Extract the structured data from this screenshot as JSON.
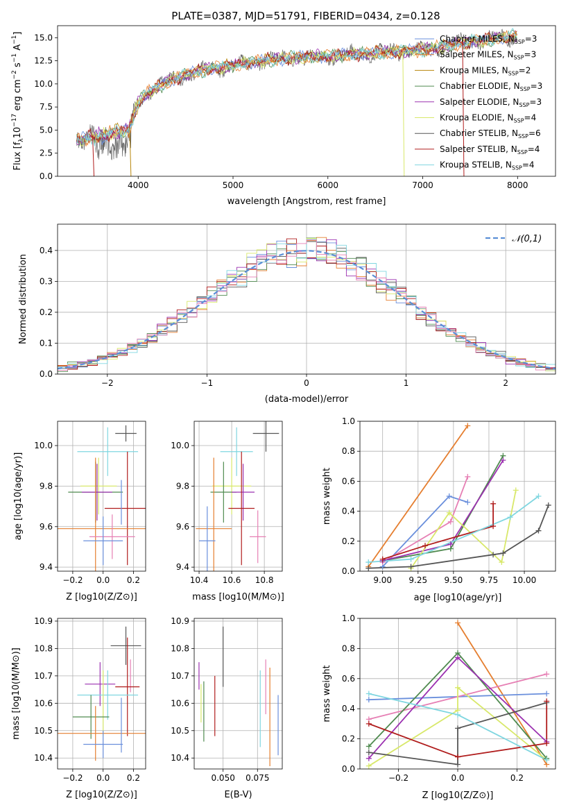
{
  "figure_title": "PLATE=0387, MJD=51791, FIBERID=0434, z=0.128",
  "colors": {
    "c0": "#6a8fdc",
    "c1": "#e57e2f",
    "c2": "#b8860b",
    "c3": "#4f8a4f",
    "c4": "#9b30b0",
    "c5": "#d8e86a",
    "c6": "#555555",
    "c7": "#b01c1c",
    "c8": "#7fd6e0",
    "c9": "#e67fb4",
    "grid": "#b0b0b0",
    "gauss": "#5b8fd6"
  },
  "chart_data": [
    {
      "id": "spectrum",
      "type": "line",
      "xlabel": "wavelength [Angstrom, rest frame]",
      "ylabel": "Flux [fλ10⁻¹⁷ erg cm⁻² s⁻¹ A⁻¹]",
      "xlim": [
        3150,
        8400
      ],
      "ylim": [
        0,
        16.3
      ],
      "xticks": [
        4000,
        5000,
        6000,
        7000,
        8000
      ],
      "yticks": [
        0.0,
        2.5,
        5.0,
        7.5,
        10.0,
        12.5,
        15.0
      ],
      "grid": false,
      "legend_position": "top-right",
      "continuum_x": [
        3350,
        3500,
        3700,
        3900,
        4000,
        4100,
        4300,
        4500,
        4700,
        5000,
        5300,
        5600,
        6000,
        6300,
        6600,
        7000,
        7300,
        7500,
        8000
      ],
      "continuum_y": [
        3.8,
        4.2,
        4.6,
        5.0,
        8.0,
        9.0,
        10.2,
        11.0,
        11.5,
        12.0,
        12.5,
        12.8,
        13.0,
        13.2,
        13.4,
        13.7,
        14.2,
        14.6,
        15.2
      ],
      "dropouts": [
        {
          "color": "c5",
          "x": 6790
        },
        {
          "color": "c7",
          "x": 7420
        },
        {
          "color": "c2",
          "x": 3910
        },
        {
          "color": "c7",
          "x": 3520
        }
      ],
      "series": [
        {
          "name": "Chabrier MILES, N_SSP=3",
          "color": "c0"
        },
        {
          "name": "Salpeter MILES, N_SSP=3",
          "color": "c1"
        },
        {
          "name": "Kroupa MILES, N_SSP=2",
          "color": "c2"
        },
        {
          "name": "Chabrier ELODIE, N_SSP=3",
          "color": "c3"
        },
        {
          "name": "Salpeter ELODIE, N_SSP=3",
          "color": "c4"
        },
        {
          "name": "Kroupa ELODIE, N_SSP=4",
          "color": "c5"
        },
        {
          "name": "Chabrier STELIB, N_SSP=6",
          "color": "c6"
        },
        {
          "name": "Salpeter STELIB, N_SSP=4",
          "color": "c7"
        },
        {
          "name": "Kroupa STELIB, N_SSP=4",
          "color": "c8"
        }
      ],
      "legend_labels": [
        {
          "pre": "Chabrier MILES, N",
          "sub": "SSP",
          "post": "=3"
        },
        {
          "pre": "Salpeter MILES, N",
          "sub": "SSP",
          "post": "=3"
        },
        {
          "pre": "Kroupa MILES, N",
          "sub": "SSP",
          "post": "=2"
        },
        {
          "pre": "Chabrier ELODIE, N",
          "sub": "SSP",
          "post": "=3"
        },
        {
          "pre": "Salpeter ELODIE, N",
          "sub": "SSP",
          "post": "=3"
        },
        {
          "pre": "Kroupa ELODIE, N",
          "sub": "SSP",
          "post": "=4"
        },
        {
          "pre": "Chabrier STELIB, N",
          "sub": "SSP",
          "post": "=6"
        },
        {
          "pre": "Salpeter STELIB, N",
          "sub": "SSP",
          "post": "=4"
        },
        {
          "pre": "Kroupa STELIB, N",
          "sub": "SSP",
          "post": "=4"
        }
      ],
      "ylabel_parts": {
        "a": "Flux [f",
        "b": "λ",
        "c": "10",
        "d": "−17",
        "e": " erg cm",
        "f": "−2",
        "g": " s",
        "h": "−1",
        "i": " A",
        "j": "−1",
        "k": "]"
      }
    },
    {
      "id": "residuals",
      "type": "step-histogram",
      "xlabel": "(data-model)/error",
      "ylabel": "Normed distribution",
      "xlim": [
        -2.5,
        2.5
      ],
      "ylim": [
        0,
        0.485
      ],
      "xticks": [
        -2,
        -1,
        0,
        1,
        2
      ],
      "yticks": [
        0.0,
        0.1,
        0.2,
        0.3,
        0.4
      ],
      "grid": true,
      "legend_position": "top-right",
      "legend": "𝒩(0,1)",
      "bin_width": 0.1,
      "gaussian": {
        "mean": 0,
        "sigma": 1
      },
      "hist_colors": [
        "c0",
        "c1",
        "c3",
        "c4",
        "c5",
        "c6",
        "c7",
        "c8",
        "c9"
      ]
    },
    {
      "id": "age_vs_Z",
      "type": "errorbar",
      "xlabel": "Z [log10(Z/Z⊙)]",
      "ylabel": "age [log10(age/yr)]",
      "xlim": [
        -0.3,
        0.28
      ],
      "ylim": [
        9.38,
        10.12
      ],
      "xticks": [
        -0.2,
        0.0,
        0.2
      ],
      "yticks": [
        9.4,
        9.6,
        9.8,
        10.0
      ],
      "grid": true,
      "points": [
        {
          "color": "c6",
          "x": 0.15,
          "y": 10.06,
          "xerr": 0.07,
          "yerr": 0.04
        },
        {
          "color": "c8",
          "x": 0.03,
          "y": 9.97,
          "xerr": 0.2,
          "yerr": 0.12
        },
        {
          "color": "c5",
          "x": -0.03,
          "y": 9.8,
          "xerr": 0.12,
          "yerr": 0.14
        },
        {
          "color": "c3",
          "x": -0.05,
          "y": 9.77,
          "xerr": 0.18,
          "yerr": 0.15
        },
        {
          "color": "c4",
          "x": -0.04,
          "y": 9.77,
          "xerr": 0.1,
          "yerr": 0.14
        },
        {
          "color": "c7",
          "x": 0.16,
          "y": 9.69,
          "xerr": 0.15,
          "yerr": 0.28
        },
        {
          "color": "c1",
          "x": -0.05,
          "y": 9.59,
          "xerr": 0.35,
          "yerr": 0.35
        },
        {
          "color": "c9",
          "x": 0.06,
          "y": 9.55,
          "xerr": 0.15,
          "yerr": 0.11
        },
        {
          "color": "c0",
          "x": 0.0,
          "y": 9.53,
          "xerr": 0.13,
          "yerr": 0.12
        },
        {
          "color": "c0",
          "x": 0.12,
          "y": 9.72,
          "xerr": 0.0,
          "yerr": 0.11
        }
      ]
    },
    {
      "id": "age_vs_mass",
      "type": "errorbar",
      "xlabel": "mass [log10(M/M⊙)]",
      "ylabel": "",
      "xlim": [
        10.37,
        10.91
      ],
      "ylim": [
        9.38,
        10.12
      ],
      "xticks": [
        10.4,
        10.6,
        10.8
      ],
      "yticks": [
        9.4,
        9.6,
        9.8,
        10.0
      ],
      "grid": true,
      "points": [
        {
          "color": "c6",
          "x": 10.81,
          "y": 10.06,
          "xerr": 0.08,
          "yerr": 0.09
        },
        {
          "color": "c8",
          "x": 10.63,
          "y": 9.97,
          "xerr": 0.1,
          "yerr": 0.12
        },
        {
          "color": "c5",
          "x": 10.6,
          "y": 9.8,
          "xerr": 0.12,
          "yerr": 0.14
        },
        {
          "color": "c3",
          "x": 10.55,
          "y": 9.77,
          "xerr": 0.08,
          "yerr": 0.15
        },
        {
          "color": "c4",
          "x": 10.67,
          "y": 9.77,
          "xerr": 0.07,
          "yerr": 0.14
        },
        {
          "color": "c7",
          "x": 10.66,
          "y": 9.69,
          "xerr": 0.08,
          "yerr": 0.28
        },
        {
          "color": "c1",
          "x": 10.49,
          "y": 9.59,
          "xerr": 0.11,
          "yerr": 0.35
        },
        {
          "color": "c9",
          "x": 10.76,
          "y": 9.55,
          "xerr": 0.05,
          "yerr": 0.13
        },
        {
          "color": "c0",
          "x": 10.45,
          "y": 9.53,
          "xerr": 0.05,
          "yerr": 0.17
        }
      ]
    },
    {
      "id": "massweight_vs_age",
      "type": "line",
      "xlabel": "age [log10(age/yr)]",
      "ylabel": "mass weight",
      "xlim": [
        8.84,
        10.22
      ],
      "ylim": [
        0,
        1.0
      ],
      "xticks": [
        9.0,
        9.25,
        9.5,
        9.75,
        10.0
      ],
      "yticks": [
        0.0,
        0.2,
        0.4,
        0.6,
        0.8,
        1.0
      ],
      "grid": true,
      "series": [
        {
          "color": "c1",
          "x": [
            8.9,
            9.6
          ],
          "y": [
            0.03,
            0.97
          ]
        },
        {
          "color": "c0",
          "x": [
            9.0,
            9.47,
            9.6
          ],
          "y": [
            0.03,
            0.5,
            0.46
          ]
        },
        {
          "color": "c9",
          "x": [
            9.0,
            9.48,
            9.6
          ],
          "y": [
            0.06,
            0.33,
            0.63
          ]
        },
        {
          "color": "c3",
          "x": [
            9.0,
            9.48,
            9.85
          ],
          "y": [
            0.07,
            0.15,
            0.77
          ]
        },
        {
          "color": "c4",
          "x": [
            9.0,
            9.48,
            9.85
          ],
          "y": [
            0.07,
            0.18,
            0.74
          ]
        },
        {
          "color": "c5",
          "x": [
            9.2,
            9.47,
            9.84,
            9.94
          ],
          "y": [
            0.02,
            0.39,
            0.06,
            0.54
          ]
        },
        {
          "color": "c6",
          "x": [
            8.9,
            9.2,
            9.78,
            9.85,
            10.1,
            10.17
          ],
          "y": [
            0.02,
            0.03,
            0.11,
            0.12,
            0.27,
            0.44
          ]
        },
        {
          "color": "c7",
          "x": [
            9.0,
            9.3,
            9.78,
            9.78
          ],
          "y": [
            0.08,
            0.17,
            0.3,
            0.45
          ]
        },
        {
          "color": "c8",
          "x": [
            8.9,
            9.2,
            9.9,
            10.1
          ],
          "y": [
            0.06,
            0.08,
            0.36,
            0.5
          ]
        }
      ]
    },
    {
      "id": "mass_vs_Z",
      "type": "errorbar",
      "xlabel": "Z [log10(Z/Z⊙)]",
      "ylabel": "mass [log10(M/M⊙)]",
      "xlim": [
        -0.3,
        0.28
      ],
      "ylim": [
        10.36,
        10.91
      ],
      "xticks": [
        -0.2,
        0.0,
        0.2
      ],
      "yticks": [
        10.4,
        10.5,
        10.6,
        10.7,
        10.8,
        10.9
      ],
      "grid": true,
      "points": [
        {
          "color": "c6",
          "x": 0.15,
          "y": 10.81,
          "xerr": 0.1,
          "yerr": 0.07
        },
        {
          "color": "c4",
          "x": -0.02,
          "y": 10.67,
          "xerr": 0.1,
          "yerr": 0.08
        },
        {
          "color": "c9",
          "x": 0.18,
          "y": 10.7,
          "xerr": 0.0,
          "yerr": 0.06
        },
        {
          "color": "c7",
          "x": 0.16,
          "y": 10.66,
          "xerr": 0.08,
          "yerr": 0.18
        },
        {
          "color": "c8",
          "x": 0.03,
          "y": 10.63,
          "xerr": 0.2,
          "yerr": 0.09
        },
        {
          "color": "c5",
          "x": 0.0,
          "y": 10.6,
          "xerr": 0.0,
          "yerr": 0.12
        },
        {
          "color": "c3",
          "x": -0.08,
          "y": 10.55,
          "xerr": 0.12,
          "yerr": 0.08
        },
        {
          "color": "c1",
          "x": -0.05,
          "y": 10.49,
          "xerr": 0.35,
          "yerr": 0.1
        },
        {
          "color": "c0",
          "x": 0.0,
          "y": 10.45,
          "xerr": 0.13,
          "yerr": 0.05
        },
        {
          "color": "c0",
          "x": 0.12,
          "y": 10.52,
          "xerr": 0.0,
          "yerr": 0.1
        }
      ]
    },
    {
      "id": "mass_vs_EBV",
      "type": "errorbar",
      "xlabel": "E(B-V)",
      "ylabel": "",
      "xlim": [
        0.029,
        0.093
      ],
      "ylim": [
        10.36,
        10.91
      ],
      "xticks": [
        0.05,
        0.075
      ],
      "xticklabels": [
        "0.050",
        "0.075"
      ],
      "yticks": [
        10.4,
        10.5,
        10.6,
        10.7,
        10.8,
        10.9
      ],
      "grid": true,
      "points": [
        {
          "color": "c4",
          "x": 0.0325,
          "y": 10.7,
          "xerr": 0,
          "yerr": 0.05
        },
        {
          "color": "c5",
          "x": 0.034,
          "y": 10.6,
          "xerr": 0,
          "yerr": 0.07
        },
        {
          "color": "c3",
          "x": 0.036,
          "y": 10.57,
          "xerr": 0,
          "yerr": 0.11
        },
        {
          "color": "c7",
          "x": 0.044,
          "y": 10.59,
          "xerr": 0,
          "yerr": 0.11
        },
        {
          "color": "c6",
          "x": 0.05,
          "y": 10.77,
          "xerr": 0,
          "yerr": 0.11
        },
        {
          "color": "c8",
          "x": 0.077,
          "y": 10.58,
          "xerr": 0,
          "yerr": 0.14
        },
        {
          "color": "c9",
          "x": 0.081,
          "y": 10.66,
          "xerr": 0,
          "yerr": 0.1
        },
        {
          "color": "c1",
          "x": 0.084,
          "y": 10.55,
          "xerr": 0,
          "yerr": 0.18
        },
        {
          "color": "c0",
          "x": 0.09,
          "y": 10.52,
          "xerr": 0,
          "yerr": 0.11
        }
      ]
    },
    {
      "id": "massweight_vs_Z",
      "type": "line",
      "xlabel": "Z [log10(Z/Z⊙)]",
      "ylabel": "mass weight",
      "xlim": [
        -0.33,
        0.33
      ],
      "ylim": [
        0,
        1.0
      ],
      "xticks": [
        -0.2,
        0.0,
        0.2
      ],
      "yticks": [
        0.0,
        0.2,
        0.4,
        0.6,
        0.8,
        1.0
      ],
      "grid": true,
      "series": [
        {
          "color": "c1",
          "x": [
            0.0,
            0.3
          ],
          "y": [
            0.97,
            0.03
          ]
        },
        {
          "color": "c0",
          "x": [
            -0.3,
            0.3
          ],
          "y": [
            0.46,
            0.5
          ]
        },
        {
          "color": "c9",
          "x": [
            -0.3,
            0.3
          ],
          "y": [
            0.33,
            0.63
          ]
        },
        {
          "color": "c3",
          "x": [
            -0.3,
            0.0,
            0.3
          ],
          "y": [
            0.15,
            0.77,
            0.07
          ]
        },
        {
          "color": "c4",
          "x": [
            -0.3,
            0.0,
            0.3
          ],
          "y": [
            0.07,
            0.74,
            0.18
          ]
        },
        {
          "color": "c5",
          "x": [
            -0.3,
            0.0,
            0.0,
            0.3
          ],
          "y": [
            0.02,
            0.39,
            0.54,
            0.06
          ]
        },
        {
          "color": "c6",
          "x": [
            -0.3,
            0.0,
            0.0,
            0.3
          ],
          "y": [
            0.11,
            0.03,
            0.27,
            0.44
          ]
        },
        {
          "color": "c7",
          "x": [
            -0.3,
            0.0,
            0.3,
            0.3
          ],
          "y": [
            0.3,
            0.08,
            0.17,
            0.45
          ]
        },
        {
          "color": "c8",
          "x": [
            -0.3,
            0.0,
            0.3
          ],
          "y": [
            0.5,
            0.36,
            0.06
          ]
        }
      ]
    }
  ]
}
